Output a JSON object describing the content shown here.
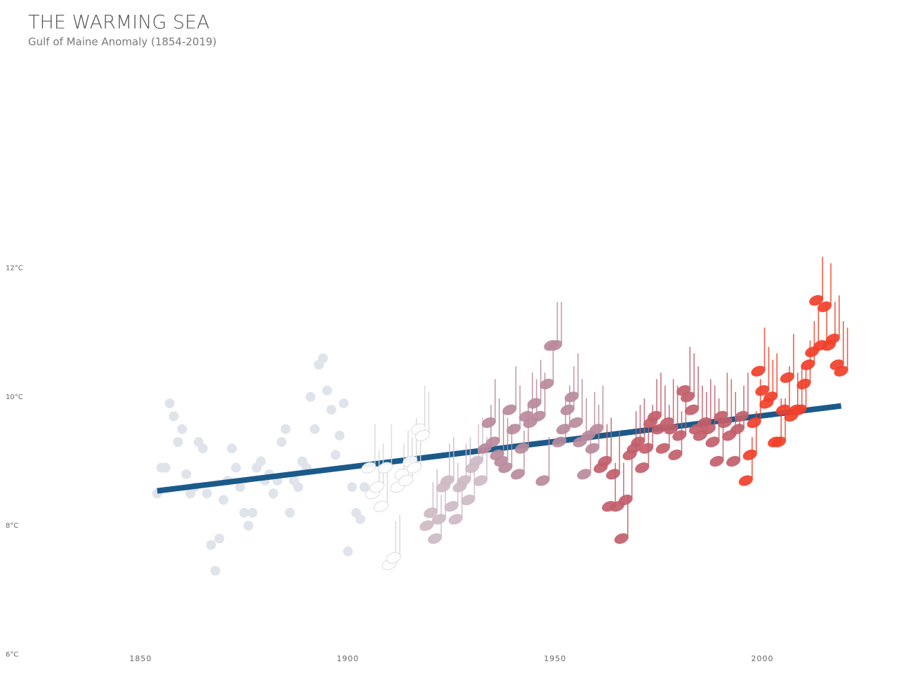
{
  "chart_data": {
    "type": "scatter",
    "title": "THE WARMING SEA",
    "subtitle": "Gulf of Maine Anomaly (1854-2019)",
    "xlim": [
      1822,
      2025
    ],
    "xticks": [
      1850,
      1900,
      1950,
      2000
    ],
    "ylim": [
      5.6,
      12.4
    ],
    "yticks": [
      {
        "value": 6,
        "label": "6°C"
      },
      {
        "value": 8,
        "label": "8°C"
      },
      {
        "value": 10,
        "label": "10°C"
      },
      {
        "value": 12,
        "label": "12°C"
      }
    ],
    "grid": false,
    "trend": {
      "x": [
        1854,
        2019
      ],
      "values": [
        8.54,
        9.86
      ],
      "color": "#1a5a8a"
    },
    "series": [
      {
        "marker": "circle",
        "color": "#dfe4ea",
        "x": [
          1854,
          1855,
          1856,
          1857,
          1858,
          1859,
          1860,
          1861,
          1862,
          1863,
          1864,
          1865,
          1866,
          1867,
          1868,
          1869,
          1870,
          1871,
          1872,
          1873,
          1874,
          1875,
          1876,
          1877,
          1878,
          1879,
          1880,
          1881,
          1882,
          1883,
          1884,
          1885,
          1886,
          1887,
          1888,
          1889,
          1890,
          1891,
          1892,
          1893,
          1894,
          1895,
          1896,
          1897,
          1898,
          1899,
          1900,
          1901,
          1902,
          1903,
          1904
        ],
        "values": [
          8.5,
          8.9,
          8.9,
          9.9,
          9.7,
          9.3,
          9.5,
          8.8,
          8.5,
          8.6,
          9.3,
          9.2,
          8.5,
          7.7,
          7.3,
          7.8,
          8.4,
          8.7,
          9.2,
          8.9,
          8.6,
          8.2,
          8.0,
          8.2,
          8.9,
          9.0,
          8.7,
          8.8,
          8.5,
          8.7,
          9.3,
          9.5,
          8.2,
          8.7,
          8.6,
          9.0,
          8.9,
          10.0,
          9.5,
          10.5,
          10.6,
          10.1,
          9.8,
          9.1,
          9.4,
          9.9,
          7.6,
          8.6,
          8.2,
          8.1,
          8.6
        ]
      },
      {
        "marker": "note",
        "color": "#ffffff",
        "x": [
          1905,
          1906,
          1907,
          1908,
          1909,
          1910,
          1911,
          1912,
          1913,
          1914,
          1915,
          1916,
          1917,
          1918
        ],
        "values": [
          8.9,
          8.5,
          8.6,
          8.3,
          8.9,
          7.4,
          7.5,
          8.6,
          8.8,
          8.7,
          9.0,
          8.9,
          9.5,
          9.4
        ]
      },
      {
        "marker": "note",
        "color": "#cdbac6",
        "x": [
          1919,
          1920,
          1921,
          1922,
          1923,
          1924,
          1925,
          1926,
          1927,
          1928,
          1929,
          1930,
          1931,
          1932
        ],
        "values": [
          8.0,
          8.2,
          7.8,
          8.1,
          8.6,
          8.7,
          8.3,
          8.1,
          8.6,
          8.7,
          8.4,
          8.9,
          9.0,
          8.7
        ]
      },
      {
        "marker": "note",
        "color": "#b98a9c",
        "x": [
          1933,
          1934,
          1935,
          1936,
          1937,
          1938,
          1939,
          1940,
          1941,
          1942,
          1943,
          1944,
          1945,
          1946,
          1947,
          1948,
          1949,
          1950,
          1951,
          1952,
          1953,
          1954,
          1955,
          1956,
          1957,
          1958,
          1959,
          1960
        ],
        "values": [
          9.2,
          9.6,
          9.3,
          9.1,
          9.0,
          8.9,
          9.8,
          9.5,
          8.8,
          9.2,
          9.7,
          9.6,
          9.9,
          9.7,
          8.7,
          10.2,
          10.8,
          10.8,
          9.3,
          9.5,
          9.8,
          10.0,
          9.6,
          9.3,
          8.8,
          9.4,
          9.2,
          9.5
        ]
      },
      {
        "marker": "note",
        "color": "#c25e6a",
        "x": [
          1961,
          1962,
          1963,
          1964,
          1965,
          1966,
          1967,
          1968,
          1969,
          1970,
          1971,
          1972,
          1973,
          1974,
          1975,
          1976,
          1977,
          1978,
          1979,
          1980,
          1981,
          1982,
          1983,
          1984,
          1985,
          1986,
          1987,
          1988,
          1989,
          1990,
          1991,
          1992,
          1993,
          1994,
          1995
        ],
        "values": [
          8.9,
          9.0,
          8.3,
          8.8,
          8.3,
          7.8,
          8.4,
          9.1,
          9.2,
          9.3,
          8.9,
          9.2,
          9.6,
          9.7,
          9.5,
          9.2,
          9.6,
          9.5,
          9.1,
          9.4,
          10.1,
          10.0,
          9.8,
          9.5,
          9.4,
          9.6,
          9.5,
          9.3,
          9.0,
          9.7,
          9.6,
          9.4,
          9.0,
          9.5,
          9.7
        ]
      },
      {
        "marker": "note",
        "color": "#f0402a",
        "x": [
          1996,
          1997,
          1998,
          1999,
          2000,
          2001,
          2002,
          2003,
          2004,
          2005,
          2006,
          2007,
          2008,
          2009,
          2010,
          2011,
          2012,
          2013,
          2014,
          2015,
          2016,
          2017,
          2018,
          2019
        ],
        "values": [
          8.7,
          9.1,
          9.6,
          10.4,
          10.1,
          9.9,
          10.0,
          9.3,
          9.3,
          9.8,
          10.3,
          9.7,
          9.8,
          9.8,
          10.2,
          10.5,
          10.7,
          11.5,
          10.8,
          11.4,
          10.8,
          10.9,
          10.5,
          10.4
        ]
      }
    ]
  }
}
